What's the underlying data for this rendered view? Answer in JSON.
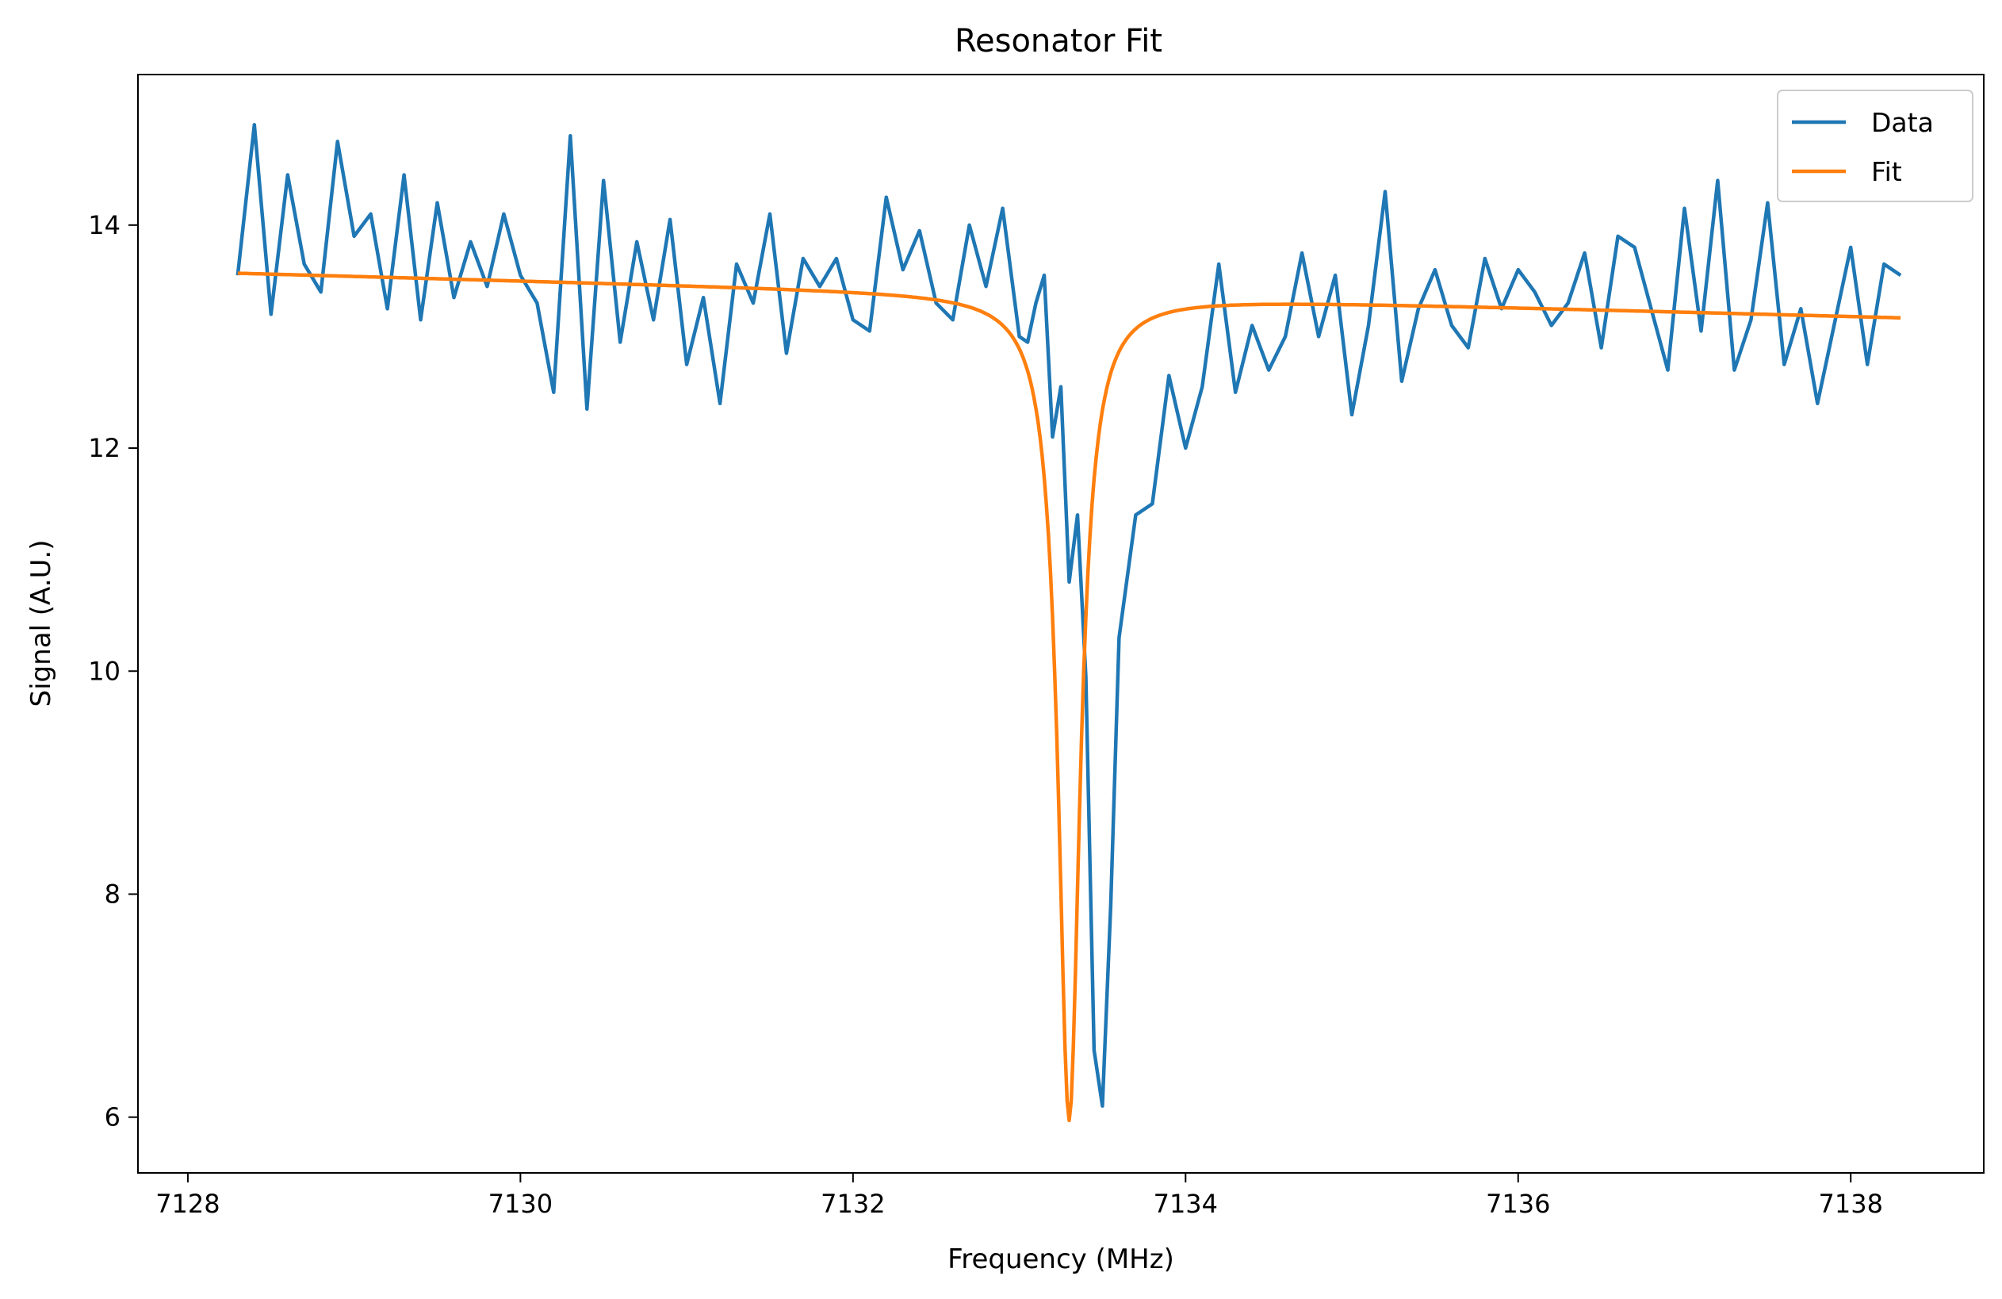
{
  "chart_data": {
    "type": "line",
    "title": "Resonator Fit",
    "xlabel": "Frequency (MHz)",
    "ylabel": "Signal (A.U.)",
    "xlim": [
      7127.7,
      7138.8
    ],
    "ylim": [
      5.5,
      15.35
    ],
    "xticks": [
      7128,
      7130,
      7132,
      7134,
      7136,
      7138
    ],
    "yticks": [
      6,
      8,
      10,
      12,
      14
    ],
    "grid": false,
    "legend": {
      "position": "top-right"
    },
    "series": [
      {
        "name": "Data",
        "color": "#1f77b4",
        "x": [
          7128.3,
          7128.4,
          7128.5,
          7128.6,
          7128.7,
          7128.8,
          7128.9,
          7129.0,
          7129.1,
          7129.2,
          7129.3,
          7129.4,
          7129.5,
          7129.6,
          7129.7,
          7129.8,
          7129.9,
          7130.0,
          7130.1,
          7130.2,
          7130.3,
          7130.4,
          7130.5,
          7130.6,
          7130.7,
          7130.8,
          7130.9,
          7131.0,
          7131.1,
          7131.2,
          7131.3,
          7131.4,
          7131.5,
          7131.6,
          7131.7,
          7131.8,
          7131.9,
          7132.0,
          7132.1,
          7132.2,
          7132.3,
          7132.4,
          7132.5,
          7132.6,
          7132.7,
          7132.8,
          7132.9,
          7133.0,
          7133.05,
          7133.1,
          7133.15,
          7133.2,
          7133.25,
          7133.3,
          7133.35,
          7133.4,
          7133.45,
          7133.5,
          7133.55,
          7133.6,
          7133.7,
          7133.8,
          7133.9,
          7134.0,
          7134.1,
          7134.2,
          7134.3,
          7134.4,
          7134.5,
          7134.6,
          7134.7,
          7134.8,
          7134.9,
          7135.0,
          7135.1,
          7135.2,
          7135.3,
          7135.4,
          7135.5,
          7135.6,
          7135.7,
          7135.8,
          7135.9,
          7136.0,
          7136.1,
          7136.2,
          7136.3,
          7136.4,
          7136.5,
          7136.6,
          7136.7,
          7136.8,
          7136.9,
          7137.0,
          7137.1,
          7137.2,
          7137.3,
          7137.4,
          7137.5,
          7137.6,
          7137.7,
          7137.8,
          7137.9,
          7138.0,
          7138.1,
          7138.2,
          7138.3
        ],
        "y": [
          13.55,
          14.9,
          13.2,
          14.45,
          13.65,
          13.4,
          14.75,
          13.9,
          14.1,
          13.25,
          14.45,
          13.15,
          14.2,
          13.35,
          13.85,
          13.45,
          14.1,
          13.55,
          13.3,
          12.5,
          14.8,
          12.35,
          14.4,
          12.95,
          13.85,
          13.15,
          14.05,
          12.75,
          13.35,
          12.4,
          13.65,
          13.3,
          14.1,
          12.85,
          13.7,
          13.45,
          13.7,
          13.15,
          13.05,
          14.25,
          13.6,
          13.95,
          13.3,
          13.15,
          14.0,
          13.45,
          14.15,
          13.0,
          12.95,
          13.3,
          13.55,
          12.1,
          12.55,
          10.8,
          11.4,
          9.95,
          6.6,
          6.1,
          7.9,
          10.3,
          11.4,
          11.5,
          12.65,
          12.0,
          12.55,
          13.65,
          12.5,
          13.1,
          12.7,
          13.0,
          13.75,
          13.0,
          13.55,
          12.3,
          13.1,
          14.3,
          12.6,
          13.25,
          13.6,
          13.1,
          12.9,
          13.7,
          13.25,
          13.6,
          13.4,
          13.1,
          13.3,
          13.75,
          12.9,
          13.9,
          13.8,
          13.25,
          12.7,
          14.15,
          13.05,
          14.4,
          12.7,
          13.15,
          14.2,
          12.75,
          13.25,
          12.4,
          13.1,
          13.8,
          12.75,
          13.65,
          13.55
        ]
      },
      {
        "name": "Fit",
        "color": "#ff7f0e",
        "y0": 13.37,
        "slope": -0.04,
        "x_ref": 7133.3,
        "depth": 7.4,
        "center": 7133.3,
        "hwhm": 0.08,
        "asymmetry": 0.03
      }
    ]
  }
}
